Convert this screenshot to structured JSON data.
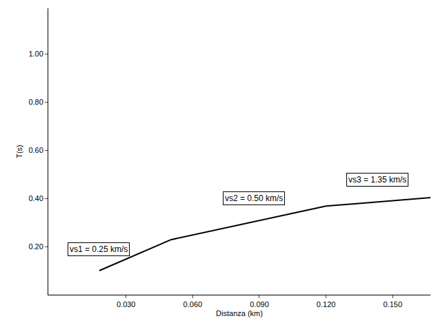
{
  "chart_data": {
    "type": "line",
    "x_label": "Distanza (km)",
    "y_label": "T(s)",
    "xlim": [
      -0.005,
      0.167
    ],
    "ylim": [
      0,
      1.19
    ],
    "xticks": [
      {
        "value": 0.03,
        "label": "0.030"
      },
      {
        "value": 0.06,
        "label": "0.060"
      },
      {
        "value": 0.09,
        "label": "0.090"
      },
      {
        "value": 0.12,
        "label": "0.120"
      },
      {
        "value": 0.15,
        "label": "0.150"
      }
    ],
    "yticks": [
      {
        "value": 0.2,
        "label": "0.20"
      },
      {
        "value": 0.4,
        "label": "0.40"
      },
      {
        "value": 0.6,
        "label": "0.60"
      },
      {
        "value": 0.8,
        "label": "0.80"
      },
      {
        "value": 1.0,
        "label": "1.00"
      }
    ],
    "grid": false,
    "series": [
      {
        "name": "vs1 = 0.25 km/s",
        "color": "#000000",
        "x": [
          0.018,
          0.05
        ],
        "values": [
          0.1,
          0.228
        ]
      },
      {
        "name": "vs2 = 0.50 km/s",
        "color": "#000000",
        "x": [
          0.05,
          0.12
        ],
        "values": [
          0.228,
          0.368
        ]
      },
      {
        "name": "vs3 = 1.35 km/s",
        "color": "#000000",
        "x": [
          0.12,
          0.167
        ],
        "values": [
          0.368,
          0.403
        ]
      }
    ],
    "annotations": [
      {
        "text": "vs1 = 0.25 km/s",
        "x": 0.0176,
        "y": 0.19
      },
      {
        "text": "vs2 = 0.50 km/s",
        "x": 0.0874,
        "y": 0.4
      },
      {
        "text": "vs3 = 1.35 km/s",
        "x": 0.143,
        "y": 0.477
      }
    ]
  }
}
